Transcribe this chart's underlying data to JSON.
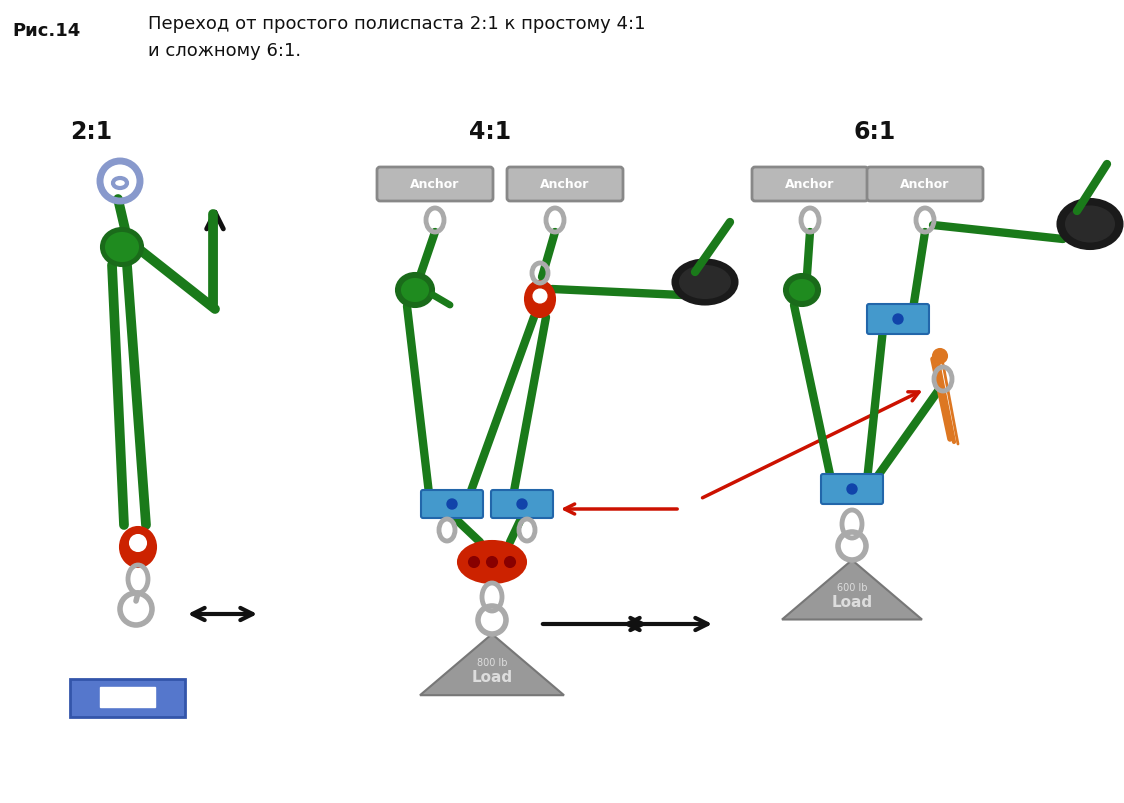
{
  "title_label": "Рис.14",
  "title_text_line1": "Переход от простого полиспаста 2:1 к простому 4:1",
  "title_text_line2": "и сложному 6:1.",
  "label_21": "2:1",
  "label_41": "4:1",
  "label_61": "6:1",
  "anchor_text": "Anchor",
  "bg_color": "#ffffff",
  "rope_green": "#1a7a1a",
  "rope_dark": "#145214",
  "anchor_face": "#b8b8b8",
  "anchor_edge": "#888888",
  "pulley_red": "#cc2200",
  "pulley_blue": "#4499cc",
  "load_gray": "#999999",
  "load_blue": "#5566cc",
  "arrow_black": "#111111",
  "arrow_red": "#cc1100",
  "orange_rope": "#dd7722",
  "carab_color": "#aaaaaa",
  "knot_green": "#1a6b1a"
}
